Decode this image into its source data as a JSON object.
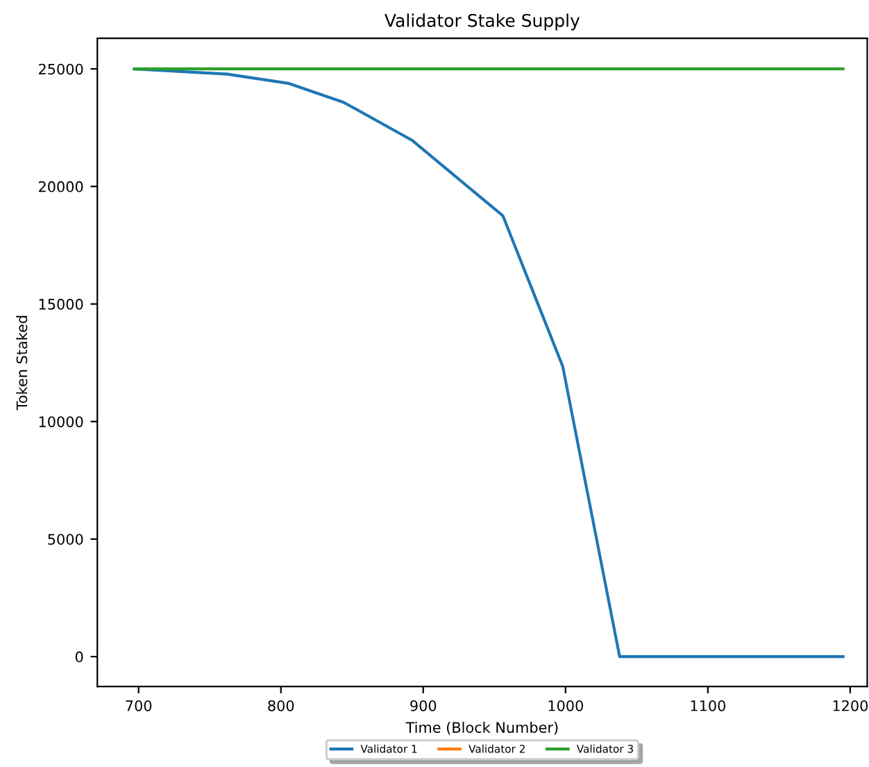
{
  "chart_data": {
    "type": "line",
    "title": "Validator Stake Supply",
    "xlabel": "Time (Block Number)",
    "ylabel": "Token Staked",
    "xlim": [
      671,
      1212
    ],
    "ylim": [
      -1270,
      26300
    ],
    "xticks": [
      700,
      800,
      900,
      1000,
      1100,
      1200
    ],
    "yticks": [
      0,
      5000,
      10000,
      15000,
      20000,
      25000
    ],
    "grid": false,
    "legend": "bottom",
    "series": [
      {
        "name": "Validator 1",
        "color": "#1f77b4",
        "x": [
          697,
          762,
          805,
          844,
          892,
          956,
          998,
          1038,
          1195
        ],
        "values": [
          25000,
          24780,
          24390,
          23580,
          21970,
          18750,
          12350,
          0,
          0
        ]
      },
      {
        "name": "Validator 2",
        "color": "#ff7f0e"
      },
      {
        "name": "Validator 3",
        "color": "#2ca02c",
        "x": [
          697,
          1195
        ],
        "values": [
          25000,
          25000
        ]
      }
    ]
  }
}
